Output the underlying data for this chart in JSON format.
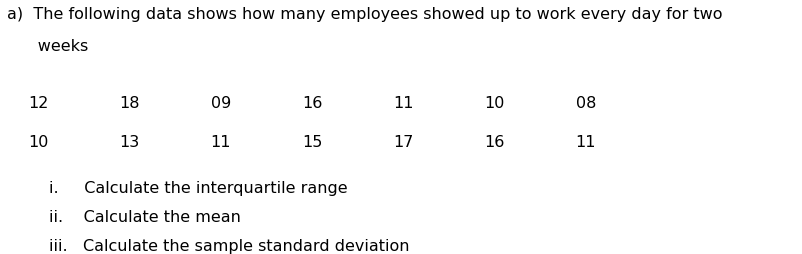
{
  "title_part1": "a)  The following data shows how many employees showed up to work every day for two",
  "title_part2": "      weeks",
  "row1": [
    "12",
    "18",
    "09",
    "16",
    "11",
    "10",
    "08"
  ],
  "row2": [
    "10",
    "13",
    "11",
    "15",
    "17",
    "16",
    "11"
  ],
  "items": [
    "i.     Calculate the interquartile range",
    "ii.    Calculate the mean",
    "iii.   Calculate the sample standard deviation"
  ],
  "bg_color": "#ffffff",
  "text_color": "#000000",
  "font_size": 11.5,
  "font_family": "DejaVu Sans"
}
